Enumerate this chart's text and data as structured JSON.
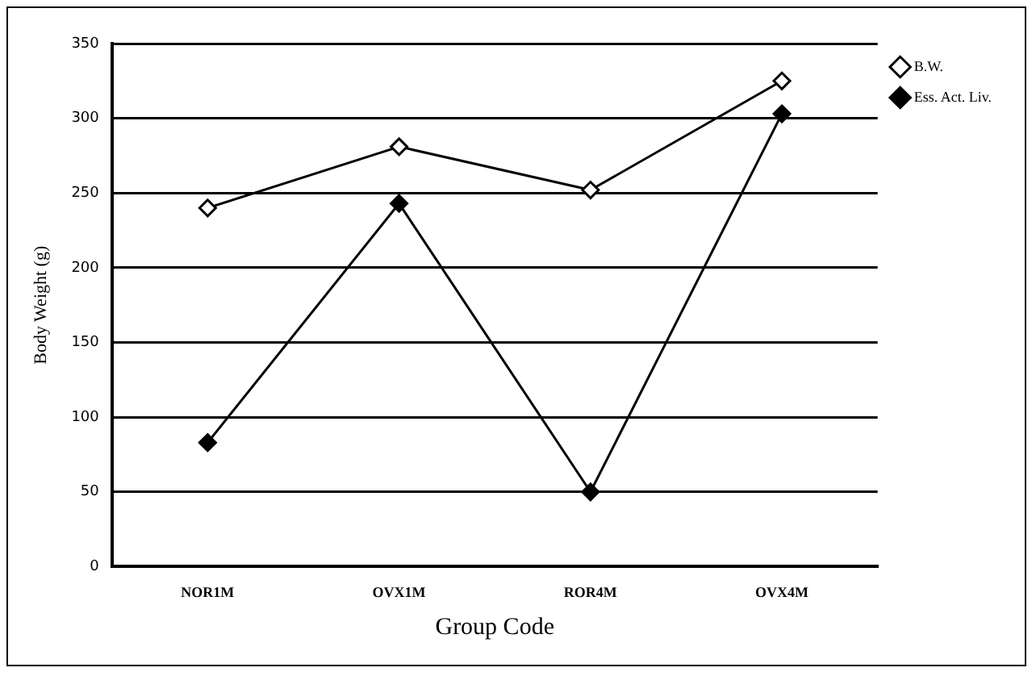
{
  "chart_data": {
    "type": "line",
    "xlabel": "Group Code",
    "ylabel": "Body Weight (g)",
    "categories": [
      "NOR1M",
      "OVX1M",
      "ROR4M",
      "OVX4M"
    ],
    "series": [
      {
        "name": "B.W.",
        "color": "#000000",
        "values": [
          240,
          281,
          252,
          325
        ]
      },
      {
        "name": "Ess. Act. Liv.",
        "color": "#000000",
        "values": [
          83,
          243,
          50,
          303
        ]
      }
    ],
    "ylim": [
      0,
      350
    ],
    "yticks": [
      0,
      50,
      100,
      150,
      200,
      250,
      300,
      350
    ],
    "grid": "y",
    "legend": "right",
    "marker": "diamond",
    "line_style": "solid"
  }
}
